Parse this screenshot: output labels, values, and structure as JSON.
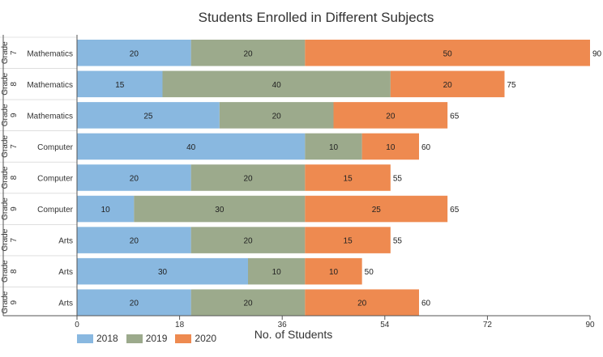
{
  "chart_data": {
    "type": "bar",
    "orientation": "horizontal",
    "stacked": true,
    "title": "Students Enrolled in Different Subjects",
    "xlabel": "No. of Students",
    "ylabel": "",
    "xlim": [
      0,
      90
    ],
    "x_ticks": [
      "0",
      "18",
      "36",
      "54",
      "72",
      "90"
    ],
    "grid": false,
    "legend_position": "bottom-left",
    "categories": [
      {
        "group": "Grade 7",
        "subject": "Mathematics"
      },
      {
        "group": "Grade 8",
        "subject": "Mathematics"
      },
      {
        "group": "Grade 9",
        "subject": "Mathematics"
      },
      {
        "group": "Grade 7",
        "subject": "Computer"
      },
      {
        "group": "Grade 8",
        "subject": "Computer"
      },
      {
        "group": "Grade 9",
        "subject": "Computer"
      },
      {
        "group": "Grade 7",
        "subject": "Arts"
      },
      {
        "group": "Grade 8",
        "subject": "Arts"
      },
      {
        "group": "Grade 9",
        "subject": "Arts"
      }
    ],
    "series": [
      {
        "name": "2018",
        "color": "#89b8e0",
        "values": [
          20,
          15,
          25,
          40,
          20,
          10,
          20,
          30,
          20
        ]
      },
      {
        "name": "2019",
        "color": "#9caa8c",
        "values": [
          20,
          40,
          20,
          10,
          20,
          30,
          20,
          10,
          20
        ]
      },
      {
        "name": "2020",
        "color": "#ee8a50",
        "values": [
          50,
          20,
          20,
          10,
          15,
          25,
          15,
          10,
          20
        ]
      }
    ],
    "totals": [
      90,
      75,
      65,
      60,
      55,
      65,
      55,
      50,
      60
    ]
  }
}
